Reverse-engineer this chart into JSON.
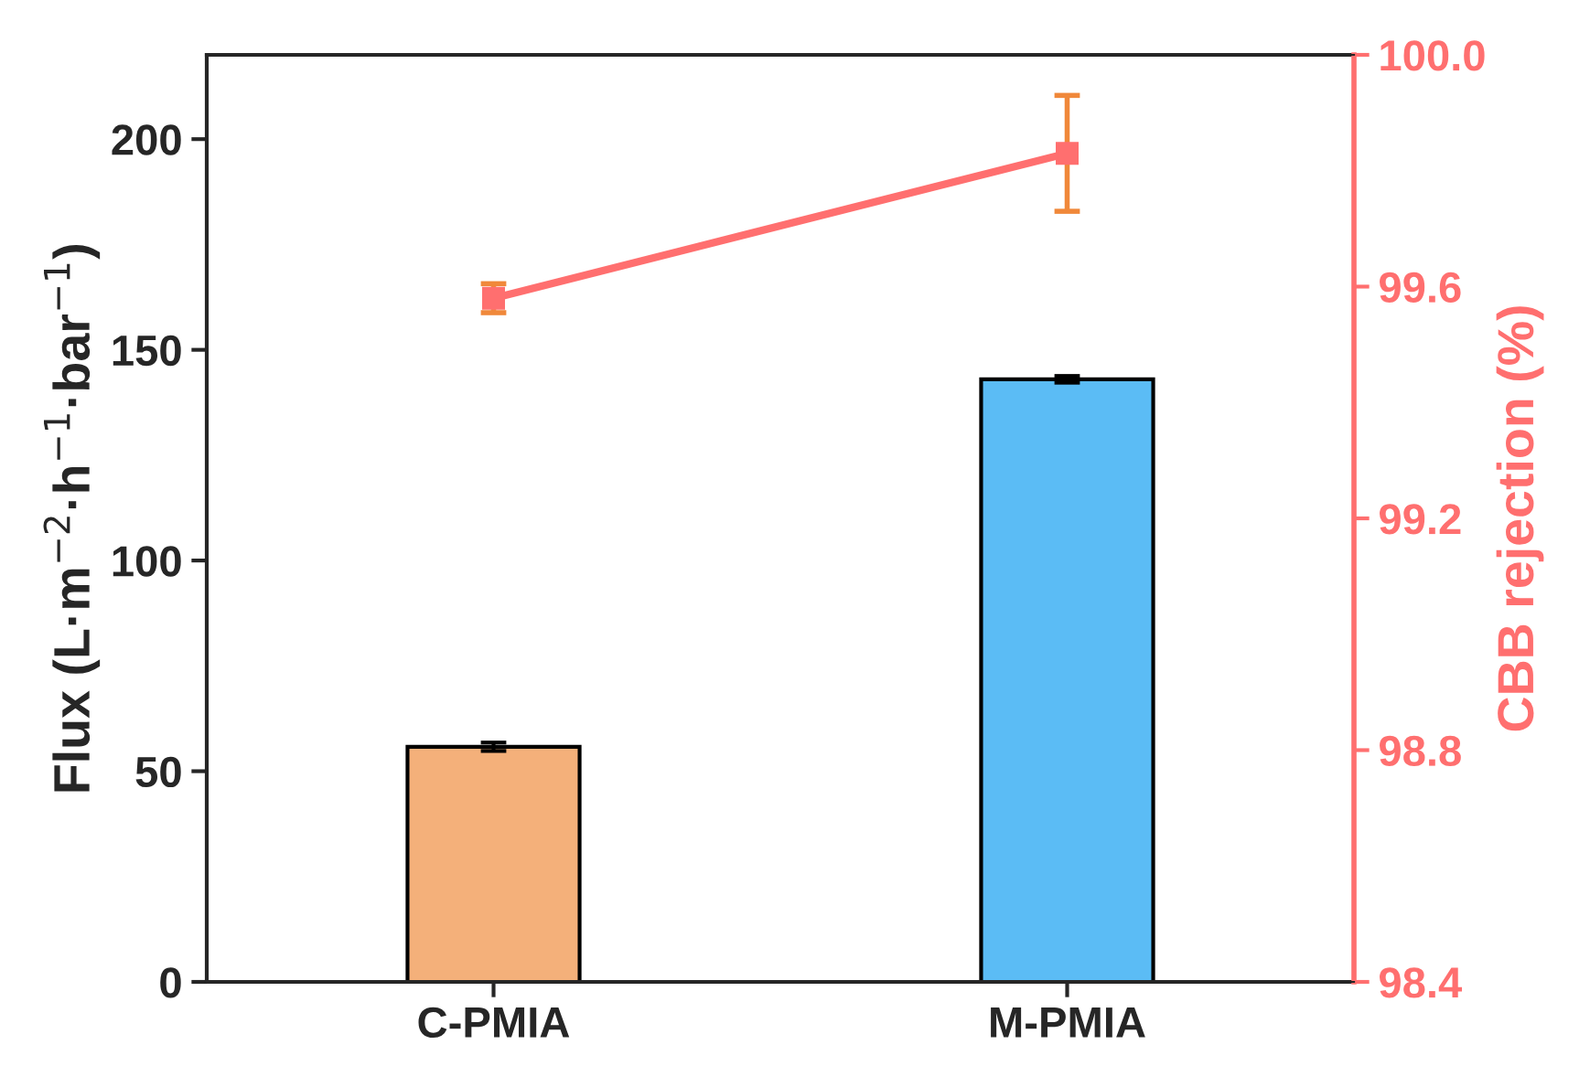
{
  "chart_data": {
    "type": "bar",
    "categories": [
      "C-PMIA",
      "M-PMIA"
    ],
    "ylabel": "Flux (L·m$^{−2}$·h$^{−1}$·bar$^{−1}$)",
    "y2label": "CBB rejection (%)",
    "series": [
      {
        "colors": [
          "#f4b07a",
          "#5bbcf5"
        ],
        "values": [
          55.8,
          143.0
        ],
        "errors": [
          1.0,
          0.8
        ]
      },
      {
        "type": "line",
        "axis": "y2",
        "color": "#ff6f6f",
        "values": [
          99.58,
          99.83
        ],
        "errors": [
          0.025,
          0.1
        ],
        "marker": "square"
      }
    ],
    "ylim": [
      0,
      220
    ],
    "yticks": [
      0,
      50,
      100,
      150,
      200
    ],
    "y2lim": [
      98.4,
      100.0
    ],
    "y2ticks": [
      {
        "value": 98.4,
        "label": "98.4"
      },
      {
        "value": 98.8,
        "label": "98.8"
      },
      {
        "value": 99.2,
        "label": "99.2"
      },
      {
        "value": 99.6,
        "label": "99.6"
      },
      {
        "value": 100.0,
        "label": "100.0"
      }
    ],
    "grid": false,
    "legend": false
  }
}
